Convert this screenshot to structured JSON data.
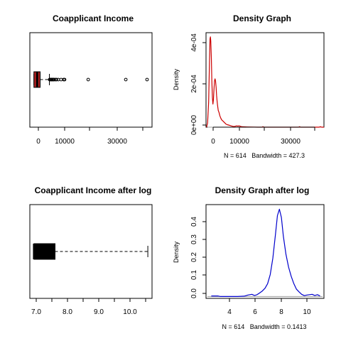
{
  "chart_data": [
    {
      "type": "boxplot",
      "title": "Coapplicant Income",
      "orientation": "horizontal",
      "box_color": "#b22222",
      "stats": {
        "min": 0,
        "q1": 0,
        "median": 1188,
        "q3": 2297,
        "whisker_high": 5701
      },
      "outliers": [
        5800,
        6000,
        6250,
        6500,
        6700,
        7000,
        7200,
        7500,
        8000,
        8300,
        8980,
        10000,
        10968,
        11300,
        20000,
        33837,
        41667
      ],
      "xlim": [
        -1500,
        43500
      ],
      "xticks": [
        0,
        10000,
        30000
      ],
      "xtick_labels": [
        "0",
        "10000",
        "30000"
      ]
    },
    {
      "type": "line",
      "title": "Density Graph",
      "ylabel": "Density",
      "line_color": "#cc0000",
      "baseline_color": "#9e9e9e",
      "caption": "N = 614   Bandwidth = 427.3",
      "xlim": [
        -1500,
        43000
      ],
      "ylim": [
        0,
        0.00045
      ],
      "xticks": [
        0,
        10000,
        30000
      ],
      "xtick_labels": [
        "0",
        "10000",
        "30000"
      ],
      "yticks": [
        0,
        0.0002,
        0.0004
      ],
      "ytick_labels": [
        "0e+00",
        "2e-04",
        "4e-04"
      ],
      "x": [
        -1300,
        -900,
        -500,
        -200,
        0,
        150,
        300,
        500,
        700,
        900,
        1100,
        1300,
        1500,
        1700,
        1900,
        2100,
        2300,
        2500,
        2700,
        2900,
        3100,
        3400,
        3700,
        4000,
        4400,
        4800,
        5200,
        5600,
        6000,
        6500,
        7000,
        7500,
        8000,
        8600,
        9200,
        10000,
        10500,
        11000,
        11500,
        12000,
        14000,
        18000,
        19600,
        20000,
        20400,
        22000,
        30000,
        33400,
        33800,
        34200,
        36000,
        41200,
        41650,
        42100,
        43000
      ],
      "y": [
        0.0,
        2e-05,
        0.00012,
        0.0003,
        0.00042,
        0.00043,
        0.00041,
        0.00033,
        0.00022,
        0.00014,
        0.00011,
        0.00013,
        0.00018,
        0.00022,
        0.00023,
        0.00022,
        0.00019,
        0.00015,
        0.00012,
        0.0001,
        8e-05,
        7e-05,
        5.5e-05,
        4.5e-05,
        3.5e-05,
        3e-05,
        2.5e-05,
        2e-05,
        1.5e-05,
        1.2e-05,
        1e-05,
        8e-06,
        6e-06,
        4e-06,
        3e-06,
        6e-06,
        5e-06,
        6e-06,
        4e-06,
        2e-06,
        1e-06,
        0.0,
        0.0,
        2.5e-06,
        0.0,
        0.0,
        0.0,
        0.0,
        2.5e-06,
        0.0,
        0.0,
        0.0,
        2.5e-06,
        0.0,
        0.0
      ]
    },
    {
      "type": "boxplot",
      "title": "Coapplicant Income after log",
      "orientation": "horizontal",
      "box_color": "#000000",
      "stats": {
        "min": 7.1,
        "q1": 7.1,
        "median": 7.1,
        "q3": 7.75,
        "whisker_high": 10.62
      },
      "outliers": [],
      "xlim": [
        6.97,
        10.75
      ],
      "xticks": [
        7.0,
        7.5,
        8.0,
        8.5,
        9.0,
        9.5,
        10.0,
        10.5
      ],
      "xtick_labels": [
        "7.0",
        "",
        "8.0",
        "",
        "9.0",
        "",
        "10.0",
        ""
      ]
    },
    {
      "type": "line",
      "title": "Density Graph after log",
      "ylabel": "Density",
      "line_color": "#0000cc",
      "baseline_color": "#9e9e9e",
      "caption": "N = 614   Bandwidth = 0.1413",
      "xlim": [
        2.1,
        11.1
      ],
      "ylim": [
        -0.01,
        0.5
      ],
      "xticks": [
        4,
        6,
        8,
        10
      ],
      "xtick_labels": [
        "4",
        "6",
        "8",
        "10"
      ],
      "yticks": [
        0.0,
        0.1,
        0.2,
        0.3,
        0.4
      ],
      "ytick_labels": [
        "0.0",
        "0.1",
        "0.2",
        "0.3",
        "0.4"
      ],
      "x": [
        2.5,
        3.0,
        3.2,
        3.5,
        4.0,
        4.5,
        5.0,
        5.3,
        5.6,
        5.8,
        6.0,
        6.2,
        6.4,
        6.6,
        6.8,
        7.0,
        7.2,
        7.4,
        7.55,
        7.7,
        7.85,
        8.0,
        8.2,
        8.4,
        8.6,
        8.8,
        9.0,
        9.2,
        9.4,
        9.6,
        9.8,
        10.0,
        10.2,
        10.4,
        10.6,
        10.8
      ],
      "y": [
        0.003,
        0.003,
        0.0,
        0.0,
        0.0,
        0.0,
        0.002,
        0.008,
        0.012,
        0.006,
        0.01,
        0.02,
        0.03,
        0.045,
        0.07,
        0.12,
        0.21,
        0.34,
        0.44,
        0.475,
        0.43,
        0.33,
        0.23,
        0.16,
        0.11,
        0.07,
        0.04,
        0.025,
        0.012,
        0.005,
        0.008,
        0.01,
        0.012,
        0.006,
        0.01,
        0.003
      ]
    }
  ]
}
